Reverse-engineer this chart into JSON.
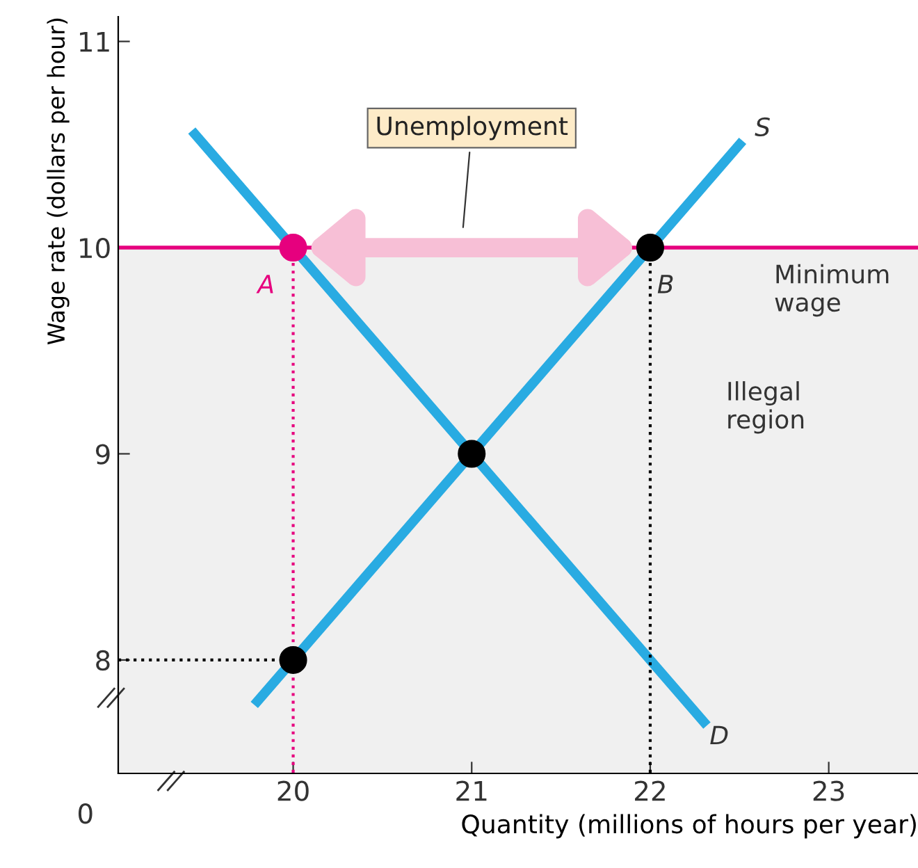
{
  "chart_data": {
    "type": "line",
    "xlabel": "Quantity (millions of hours per year)",
    "ylabel": "Wage rate (dollars per hour)",
    "xlim": [
      19.02,
      23.5
    ],
    "ylim": [
      7.45,
      11.12
    ],
    "xticks": [
      20,
      21,
      22,
      23
    ],
    "yticks": [
      8,
      9,
      10,
      11
    ],
    "grid": false,
    "series": [
      {
        "color": "#29abe2",
        "x": [
          19.8,
          22.5
        ],
        "values": [
          7.8,
          10.5
        ]
      },
      {
        "color": "#29abe2",
        "x": [
          19.45,
          22.3
        ],
        "values": [
          10.55,
          7.7
        ]
      },
      {
        "color": "#e6007e",
        "line_style": "dotted",
        "x": [
          20,
          20
        ],
        "values": [
          10,
          7.45
        ]
      },
      {
        "color": "#000000",
        "line_style": "dotted",
        "x": [
          19.02,
          20
        ],
        "values": [
          8,
          8
        ]
      },
      {
        "color": "#000000",
        "line_style": "dotted",
        "x": [
          22,
          22
        ],
        "values": [
          10,
          7.45
        ]
      },
      {
        "type": "scatter",
        "marker": "circle",
        "x": [
          20,
          22,
          21,
          20
        ],
        "values": [
          10,
          10,
          9,
          8
        ],
        "colors": [
          "#e6007e",
          "#000000",
          "#000000",
          "#000000"
        ]
      }
    ],
    "ref_lines": [
      {
        "axis": "y",
        "value": 10,
        "label": "Minimum\nwage",
        "color": "#e6007e"
      }
    ],
    "bands": [
      {
        "axis": "y",
        "from": 7.45,
        "to": 10,
        "label": "Illegal\nregion",
        "color": "#f0f0f0"
      }
    ],
    "annotations": [
      "Unemployment",
      "0",
      {
        "text": "A",
        "x": 20,
        "y": 10
      },
      {
        "text": "B",
        "x": 22,
        "y": 10
      },
      {
        "text": "S",
        "x": 22.5,
        "y": 10.5
      },
      {
        "text": "D",
        "x": 22.3,
        "y": 7.7
      }
    ]
  }
}
